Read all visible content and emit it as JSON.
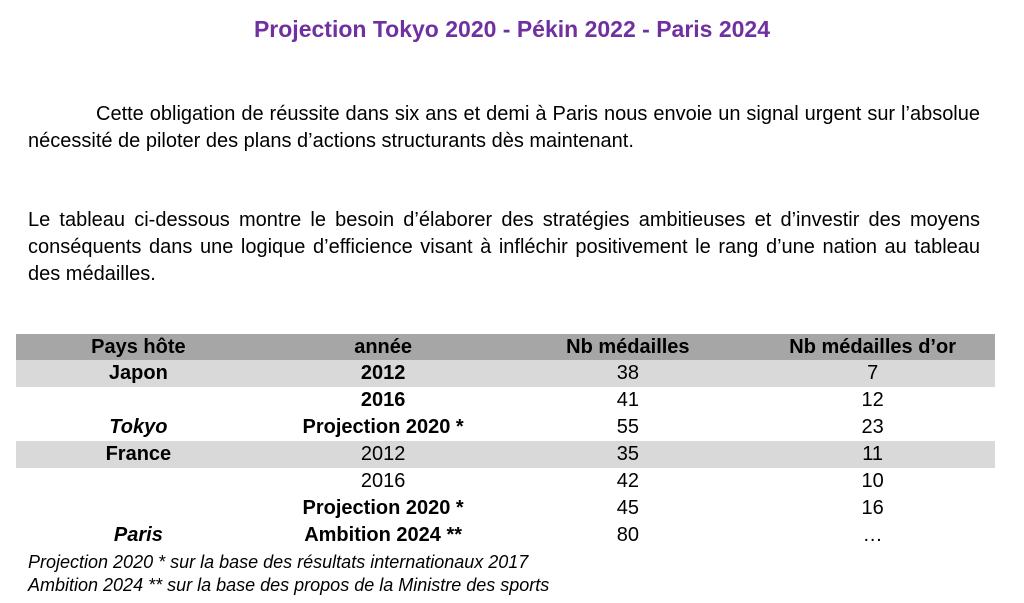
{
  "title": "Projection Tokyo 2020 - Pékin 2022 - Paris 2024",
  "colors": {
    "title": "#7030a0",
    "table_header_bg": "#a6a6a6",
    "table_shaded_row_bg": "#d9d9d9",
    "text": "#000000"
  },
  "paragraphs": {
    "intro": "Cette obligation de réussite dans six ans et demi à Paris nous envoie un signal urgent sur l’absolue nécessité de piloter des plans d’actions structurants dès maintenant.",
    "analysis": "Le tableau ci-dessous montre le besoin d’élaborer des stratégies ambitieuses et d’investir des moyens conséquents dans une logique d’efficience visant à infléchir positivement le rang d’une nation au tableau des médailles."
  },
  "table": {
    "headers": [
      "Pays hôte",
      "année",
      "Nb médailles",
      "Nb médailles d’or"
    ],
    "rows": [
      [
        "Japon",
        "2012",
        "38",
        "7"
      ],
      [
        "",
        "2016",
        "41",
        "12"
      ],
      [
        "Tokyo",
        "Projection 2020 *",
        "55",
        "23"
      ],
      [
        "France",
        "2012",
        "35",
        "11"
      ],
      [
        "",
        "2016",
        "42",
        "10"
      ],
      [
        "",
        "Projection 2020 *",
        "45",
        "16"
      ],
      [
        "Paris",
        "Ambition 2024 **",
        "80",
        "…"
      ]
    ]
  },
  "footnotes": [
    "Projection 2020 * sur la base des résultats internationaux 2017",
    "Ambition 2024 ** sur la base des propos de la Ministre des sports"
  ]
}
